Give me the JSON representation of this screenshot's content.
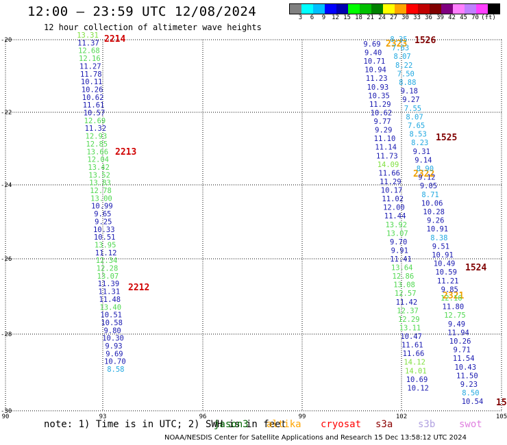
{
  "header": {
    "title": "12:00 – 23:59 UTC 12/08/2024",
    "subtitle": "12 hour collection of altimeter wave heights"
  },
  "colorbar": {
    "colors": [
      "#808080",
      "#00ffff",
      "#00bfff",
      "#0000ff",
      "#0000b0",
      "#00ff00",
      "#00c000",
      "#008000",
      "#ffff00",
      "#ffa500",
      "#ff0000",
      "#c00000",
      "#800000",
      "#800080",
      "#ff80ff",
      "#c080ff",
      "#ff40ff",
      "#000000"
    ],
    "ticks": [
      "3",
      "6",
      "9",
      "12",
      "15",
      "18",
      "21",
      "24",
      "27",
      "30",
      "33",
      "36",
      "39",
      "42",
      "45",
      "70",
      "(ft)"
    ]
  },
  "map": {
    "lat_labels": [
      "-20",
      "-22",
      "-24",
      "-26",
      "-28",
      "-30"
    ],
    "lon_labels": [
      "90",
      "93",
      "96",
      "99",
      "102",
      "105"
    ]
  },
  "tracks": [
    {
      "name": "left",
      "labels": [
        {
          "text": "2214",
          "color": "#d00000"
        },
        {
          "text": "2213",
          "color": "#d00000"
        },
        {
          "text": "2212",
          "color": "#d00000"
        }
      ],
      "points": [
        {
          "v": "13.31",
          "c": "#80e040"
        },
        {
          "v": "11.37",
          "c": "#1818b0"
        },
        {
          "v": "12.68",
          "c": "#50d850"
        },
        {
          "v": "12.16",
          "c": "#50d850"
        },
        {
          "v": "11.27",
          "c": "#1818b0"
        },
        {
          "v": "11.78",
          "c": "#1818b0"
        },
        {
          "v": "10.11",
          "c": "#1818b0"
        },
        {
          "v": "10.26",
          "c": "#1818b0"
        },
        {
          "v": "10.62",
          "c": "#1818b0"
        },
        {
          "v": "11.61",
          "c": "#1818b0"
        },
        {
          "v": "10.57",
          "c": "#1818b0"
        },
        {
          "v": "12.69",
          "c": "#50d850"
        },
        {
          "v": "11.32",
          "c": "#1818b0"
        },
        {
          "v": "12.93",
          "c": "#50d850"
        },
        {
          "v": "12.85",
          "c": "#50d850"
        },
        {
          "v": "13.66",
          "c": "#50d850"
        },
        {
          "v": "12.04",
          "c": "#50d850"
        },
        {
          "v": "13.42",
          "c": "#50d850"
        },
        {
          "v": "13.52",
          "c": "#50d850"
        },
        {
          "v": "13.83",
          "c": "#50d850"
        },
        {
          "v": "12.78",
          "c": "#50d850"
        },
        {
          "v": "13.00",
          "c": "#50d850"
        },
        {
          "v": "10.99",
          "c": "#1818b0"
        },
        {
          "v": "9.65",
          "c": "#1818b0"
        },
        {
          "v": "9.25",
          "c": "#1818b0"
        },
        {
          "v": "10.33",
          "c": "#1818b0"
        },
        {
          "v": "10.51",
          "c": "#1818b0"
        },
        {
          "v": "13.95",
          "c": "#50d850"
        },
        {
          "v": "11.12",
          "c": "#1818b0"
        },
        {
          "v": "12.34",
          "c": "#50d850"
        },
        {
          "v": "12.28",
          "c": "#50d850"
        },
        {
          "v": "13.07",
          "c": "#50d850"
        },
        {
          "v": "11.39",
          "c": "#1818b0"
        },
        {
          "v": "11.31",
          "c": "#1818b0"
        },
        {
          "v": "11.48",
          "c": "#1818b0"
        },
        {
          "v": "13.40",
          "c": "#50d850"
        },
        {
          "v": "10.51",
          "c": "#1818b0"
        },
        {
          "v": "10.58",
          "c": "#1818b0"
        },
        {
          "v": "9.80",
          "c": "#1818b0"
        },
        {
          "v": "10.30",
          "c": "#1818b0"
        },
        {
          "v": "9.93",
          "c": "#1818b0"
        },
        {
          "v": "9.69",
          "c": "#1818b0"
        },
        {
          "v": "10.70",
          "c": "#1818b0"
        },
        {
          "v": "8.58",
          "c": "#20a8e0"
        }
      ]
    },
    {
      "name": "middle",
      "labels": [
        {
          "text": "2323",
          "color": "#f0a000"
        },
        {
          "text": "2322",
          "color": "#f0a000"
        },
        {
          "text": "2321",
          "color": "#f0a000"
        }
      ],
      "points": [
        {
          "v": "9.69",
          "c": "#1818b0"
        },
        {
          "v": "9.40",
          "c": "#1818b0"
        },
        {
          "v": "10.71",
          "c": "#1818b0"
        },
        {
          "v": "10.94",
          "c": "#1818b0"
        },
        {
          "v": "11.23",
          "c": "#1818b0"
        },
        {
          "v": "10.93",
          "c": "#1818b0"
        },
        {
          "v": "10.35",
          "c": "#1818b0"
        },
        {
          "v": "11.29",
          "c": "#1818b0"
        },
        {
          "v": "10.62",
          "c": "#1818b0"
        },
        {
          "v": "9.77",
          "c": "#1818b0"
        },
        {
          "v": "9.29",
          "c": "#1818b0"
        },
        {
          "v": "11.10",
          "c": "#1818b0"
        },
        {
          "v": "11.14",
          "c": "#1818b0"
        },
        {
          "v": "11.73",
          "c": "#1818b0"
        },
        {
          "v": "14.09",
          "c": "#80e040"
        },
        {
          "v": "11.66",
          "c": "#1818b0"
        },
        {
          "v": "11.29",
          "c": "#1818b0"
        },
        {
          "v": "10.17",
          "c": "#1818b0"
        },
        {
          "v": "11.02",
          "c": "#1818b0"
        },
        {
          "v": "12.00",
          "c": "#1818b0"
        },
        {
          "v": "11.44",
          "c": "#1818b0"
        },
        {
          "v": "13.92",
          "c": "#50d850"
        },
        {
          "v": "13.07",
          "c": "#50d850"
        },
        {
          "v": "9.70",
          "c": "#1818b0"
        },
        {
          "v": "9.91",
          "c": "#1818b0"
        },
        {
          "v": "11.41",
          "c": "#1818b0"
        },
        {
          "v": "13.64",
          "c": "#50d850"
        },
        {
          "v": "12.86",
          "c": "#50d850"
        },
        {
          "v": "13.08",
          "c": "#50d850"
        },
        {
          "v": "12.57",
          "c": "#50d850"
        },
        {
          "v": "11.42",
          "c": "#1818b0"
        },
        {
          "v": "12.37",
          "c": "#50d850"
        },
        {
          "v": "12.29",
          "c": "#50d850"
        },
        {
          "v": "13.11",
          "c": "#50d850"
        },
        {
          "v": "10.47",
          "c": "#1818b0"
        },
        {
          "v": "11.61",
          "c": "#1818b0"
        },
        {
          "v": "11.66",
          "c": "#1818b0"
        },
        {
          "v": "14.12",
          "c": "#80e040"
        },
        {
          "v": "14.01",
          "c": "#80e040"
        },
        {
          "v": "10.69",
          "c": "#1818b0"
        },
        {
          "v": "10.12",
          "c": "#1818b0"
        }
      ]
    },
    {
      "name": "right",
      "labels": [
        {
          "text": "1526",
          "color": "#800000"
        },
        {
          "text": "1525",
          "color": "#800000"
        },
        {
          "text": "1524",
          "color": "#800000"
        },
        {
          "text": "15",
          "color": "#800000"
        }
      ],
      "points": [
        {
          "v": "8.35",
          "c": "#20a8e0"
        },
        {
          "v": "7.63",
          "c": "#20a8e0"
        },
        {
          "v": "8.07",
          "c": "#20a8e0"
        },
        {
          "v": "8.22",
          "c": "#20a8e0"
        },
        {
          "v": "7.50",
          "c": "#20a8e0"
        },
        {
          "v": "8.88",
          "c": "#20a8e0"
        },
        {
          "v": "9.18",
          "c": "#1818b0"
        },
        {
          "v": "9.27",
          "c": "#1818b0"
        },
        {
          "v": "7.55",
          "c": "#20a8e0"
        },
        {
          "v": "8.07",
          "c": "#20a8e0"
        },
        {
          "v": "7.65",
          "c": "#20a8e0"
        },
        {
          "v": "8.53",
          "c": "#20a8e0"
        },
        {
          "v": "8.23",
          "c": "#20a8e0"
        },
        {
          "v": "9.31",
          "c": "#1818b0"
        },
        {
          "v": "9.14",
          "c": "#1818b0"
        },
        {
          "v": "8.90",
          "c": "#20a8e0"
        },
        {
          "v": "9.12",
          "c": "#1818b0"
        },
        {
          "v": "9.05",
          "c": "#1818b0"
        },
        {
          "v": "8.71",
          "c": "#20a8e0"
        },
        {
          "v": "10.06",
          "c": "#1818b0"
        },
        {
          "v": "10.28",
          "c": "#1818b0"
        },
        {
          "v": "9.26",
          "c": "#1818b0"
        },
        {
          "v": "10.91",
          "c": "#1818b0"
        },
        {
          "v": "8.38",
          "c": "#20a8e0"
        },
        {
          "v": "9.51",
          "c": "#1818b0"
        },
        {
          "v": "10.91",
          "c": "#1818b0"
        },
        {
          "v": "10.49",
          "c": "#1818b0"
        },
        {
          "v": "10.59",
          "c": "#1818b0"
        },
        {
          "v": "11.21",
          "c": "#1818b0"
        },
        {
          "v": "9.85",
          "c": "#1818b0"
        },
        {
          "v": "12.16",
          "c": "#50d850"
        },
        {
          "v": "11.80",
          "c": "#1818b0"
        },
        {
          "v": "12.75",
          "c": "#50d850"
        },
        {
          "v": "9.49",
          "c": "#1818b0"
        },
        {
          "v": "11.94",
          "c": "#1818b0"
        },
        {
          "v": "10.26",
          "c": "#1818b0"
        },
        {
          "v": "9.71",
          "c": "#1818b0"
        },
        {
          "v": "11.54",
          "c": "#1818b0"
        },
        {
          "v": "10.43",
          "c": "#1818b0"
        },
        {
          "v": "11.50",
          "c": "#1818b0"
        },
        {
          "v": "9.23",
          "c": "#1818b0"
        },
        {
          "v": "8.50",
          "c": "#20a8e0"
        },
        {
          "v": "10.54",
          "c": "#1818b0"
        }
      ]
    }
  ],
  "note": "note: 1) Time is in UTC; 2) SWH is in feet",
  "legend": [
    {
      "text": "jason3",
      "color": "#006400"
    },
    {
      "text": "altika",
      "color": "#ffa500"
    },
    {
      "text": "cryosat",
      "color": "#ff0000"
    },
    {
      "text": "s3a",
      "color": "#8b0000"
    },
    {
      "text": "s3b",
      "color": "#b0a0e0"
    },
    {
      "text": "swot",
      "color": "#e080e0"
    }
  ],
  "footer": "NOAA/NESDIS Center for Satellite Applications and Research   15 Dec 13:58:12 UTC 2024"
}
